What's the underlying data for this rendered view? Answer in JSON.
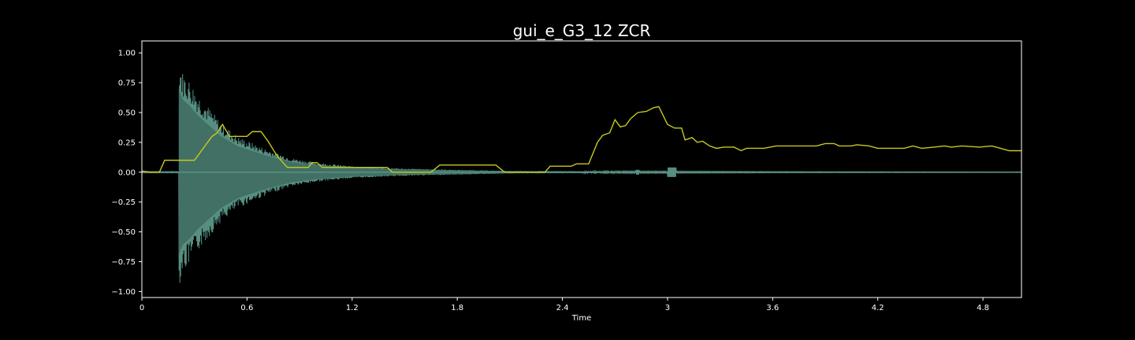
{
  "chart_data": {
    "type": "line",
    "title": "gui_e_G3_12 ZCR",
    "xlabel": "Time",
    "ylabel": "",
    "xlim": [
      0,
      5.02
    ],
    "ylim": [
      -1.05,
      1.1
    ],
    "xticks": [
      0,
      0.6,
      1.2,
      1.8,
      2.4,
      3,
      3.6,
      4.2,
      4.8
    ],
    "xtick_labels": [
      "0",
      "0.6",
      "1.2",
      "1.8",
      "2.4",
      "3",
      "3.6",
      "4.2",
      "4.8"
    ],
    "yticks": [
      1.0,
      0.75,
      0.5,
      0.25,
      0.0,
      -0.25,
      -0.5,
      -0.75,
      -1.0
    ],
    "ytick_labels": [
      "1.00",
      "0.75",
      "0.50",
      "0.25",
      "0.00",
      "−0.25",
      "−0.50",
      "−0.75",
      "−1.00"
    ],
    "grid": false,
    "background": "#000000",
    "waveform": {
      "color": "#5f9e8f",
      "onset": 0.21,
      "envelope": [
        [
          0.21,
          0.97
        ],
        [
          0.23,
          0.85
        ],
        [
          0.27,
          0.78
        ],
        [
          0.32,
          0.66
        ],
        [
          0.38,
          0.55
        ],
        [
          0.45,
          0.42
        ],
        [
          0.55,
          0.3
        ],
        [
          0.7,
          0.2
        ],
        [
          0.85,
          0.12
        ],
        [
          1.0,
          0.08
        ],
        [
          1.2,
          0.05
        ],
        [
          1.5,
          0.03
        ],
        [
          1.8,
          0.02
        ],
        [
          2.1,
          0.01
        ],
        [
          2.5,
          0.008
        ],
        [
          3.0,
          0.006
        ],
        [
          3.6,
          0.004
        ],
        [
          4.2,
          0.003
        ],
        [
          5.02,
          0.002
        ]
      ]
    },
    "series": [
      {
        "color": "#c8c81e",
        "points": [
          [
            0.0,
            0.01
          ],
          [
            0.05,
            0.0
          ],
          [
            0.1,
            0.0
          ],
          [
            0.13,
            0.1
          ],
          [
            0.3,
            0.1
          ],
          [
            0.35,
            0.2
          ],
          [
            0.4,
            0.3
          ],
          [
            0.43,
            0.33
          ],
          [
            0.46,
            0.4
          ],
          [
            0.5,
            0.3
          ],
          [
            0.6,
            0.3
          ],
          [
            0.63,
            0.34
          ],
          [
            0.68,
            0.34
          ],
          [
            0.72,
            0.26
          ],
          [
            0.77,
            0.14
          ],
          [
            0.83,
            0.04
          ],
          [
            0.95,
            0.04
          ],
          [
            0.97,
            0.08
          ],
          [
            1.0,
            0.08
          ],
          [
            1.03,
            0.04
          ],
          [
            1.4,
            0.04
          ],
          [
            1.43,
            0.0
          ],
          [
            1.65,
            0.0
          ],
          [
            1.7,
            0.06
          ],
          [
            2.02,
            0.06
          ],
          [
            2.07,
            0.0
          ],
          [
            2.3,
            0.0
          ],
          [
            2.33,
            0.05
          ],
          [
            2.45,
            0.05
          ],
          [
            2.48,
            0.07
          ],
          [
            2.55,
            0.07
          ],
          [
            2.6,
            0.25
          ],
          [
            2.63,
            0.31
          ],
          [
            2.67,
            0.33
          ],
          [
            2.7,
            0.44
          ],
          [
            2.73,
            0.38
          ],
          [
            2.76,
            0.39
          ],
          [
            2.79,
            0.45
          ],
          [
            2.83,
            0.5
          ],
          [
            2.88,
            0.51
          ],
          [
            2.92,
            0.54
          ],
          [
            2.95,
            0.55
          ],
          [
            3.0,
            0.4
          ],
          [
            3.04,
            0.37
          ],
          [
            3.08,
            0.37
          ],
          [
            3.1,
            0.27
          ],
          [
            3.14,
            0.29
          ],
          [
            3.17,
            0.25
          ],
          [
            3.2,
            0.26
          ],
          [
            3.24,
            0.22
          ],
          [
            3.28,
            0.2
          ],
          [
            3.32,
            0.21
          ],
          [
            3.38,
            0.21
          ],
          [
            3.42,
            0.18
          ],
          [
            3.45,
            0.2
          ],
          [
            3.55,
            0.2
          ],
          [
            3.62,
            0.22
          ],
          [
            3.85,
            0.22
          ],
          [
            3.9,
            0.24
          ],
          [
            3.95,
            0.24
          ],
          [
            3.98,
            0.22
          ],
          [
            4.05,
            0.22
          ],
          [
            4.08,
            0.23
          ],
          [
            4.15,
            0.22
          ],
          [
            4.2,
            0.2
          ],
          [
            4.35,
            0.2
          ],
          [
            4.4,
            0.22
          ],
          [
            4.45,
            0.2
          ],
          [
            4.52,
            0.21
          ],
          [
            4.58,
            0.22
          ],
          [
            4.62,
            0.21
          ],
          [
            4.68,
            0.22
          ],
          [
            4.78,
            0.21
          ],
          [
            4.85,
            0.22
          ],
          [
            4.9,
            0.2
          ],
          [
            4.95,
            0.18
          ],
          [
            5.02,
            0.18
          ]
        ]
      }
    ]
  }
}
